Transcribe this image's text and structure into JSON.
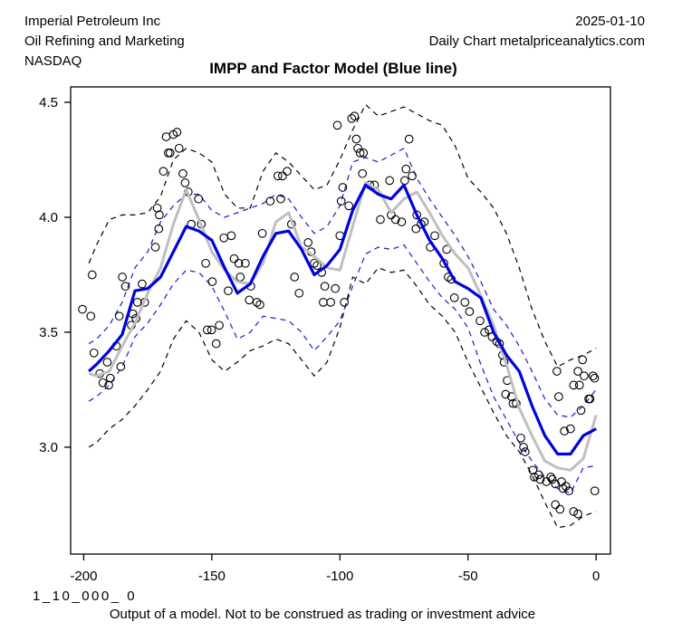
{
  "header": {
    "company": "Imperial Petroleum Inc",
    "sector": "Oil Refining and Marketing",
    "exchange": "NASDAQ",
    "date": "2025-01-10",
    "source_line": "Daily Chart metalpriceanalytics.com"
  },
  "title": "IMPP and Factor Model (Blue line)",
  "footer": {
    "model_code": "1_10_000_ 0",
    "disclaimer": "Output of a model. Not to be construed as trading or investment advice"
  },
  "chart_data": {
    "type": "line",
    "title": "IMPP and Factor Model (Blue line)",
    "xlabel": "",
    "ylabel": "",
    "grid": false,
    "legend_position": "none",
    "xlim": [
      -205.1,
      5.6
    ],
    "ylim": [
      2.535,
      4.567
    ],
    "x_ticks": [
      -200,
      -150,
      -100,
      -50,
      0
    ],
    "x_tick_labels": [
      "-200",
      "-150",
      "-100",
      "-50",
      "0"
    ],
    "y_ticks": [
      3.0,
      3.5,
      4.0,
      4.5
    ],
    "y_tick_labels": [
      "3.0",
      "3.5",
      "4.0",
      "4.5"
    ],
    "x": [
      -198,
      -195,
      -190,
      -185,
      -180,
      -175,
      -170,
      -165,
      -160,
      -155,
      -150,
      -145,
      -140,
      -135,
      -130,
      -125,
      -120,
      -115,
      -110,
      -105,
      -100,
      -95,
      -90,
      -85,
      -80,
      -75,
      -70,
      -65,
      -60,
      -55,
      -50,
      -45,
      -40,
      -35,
      -30,
      -25,
      -20,
      -15,
      -10,
      -5,
      0
    ],
    "series": [
      {
        "name": "outer-band-upper",
        "color": "#000000",
        "style": "dashed",
        "width": 1.2,
        "values": [
          3.8,
          3.88,
          3.99,
          4.01,
          4.01,
          4.02,
          4.09,
          4.25,
          4.3,
          4.28,
          4.24,
          4.1,
          4.04,
          4.04,
          4.2,
          4.28,
          4.24,
          4.18,
          4.12,
          4.14,
          4.25,
          4.38,
          4.49,
          4.44,
          4.46,
          4.48,
          4.45,
          4.42,
          4.4,
          4.31,
          4.17,
          4.11,
          4.04,
          3.93,
          3.78,
          3.6,
          3.46,
          3.35,
          3.38,
          3.4,
          3.43
        ]
      },
      {
        "name": "outer-band-lower",
        "color": "#000000",
        "style": "dashed",
        "width": 1.2,
        "values": [
          3.0,
          3.02,
          3.08,
          3.12,
          3.18,
          3.25,
          3.33,
          3.47,
          3.55,
          3.5,
          3.38,
          3.33,
          3.37,
          3.42,
          3.44,
          3.47,
          3.45,
          3.38,
          3.31,
          3.37,
          3.52,
          3.74,
          3.71,
          3.78,
          3.76,
          3.77,
          3.7,
          3.62,
          3.57,
          3.5,
          3.37,
          3.26,
          3.15,
          3.05,
          2.98,
          2.88,
          2.76,
          2.65,
          2.66,
          2.7,
          2.72
        ]
      },
      {
        "name": "inner-band-upper",
        "color": "#1a1acd",
        "style": "dashed",
        "width": 1.2,
        "values": [
          3.45,
          3.47,
          3.53,
          3.63,
          3.78,
          3.85,
          3.98,
          4.05,
          4.1,
          4.1,
          4.03,
          4.0,
          4.02,
          4.04,
          4.06,
          4.1,
          4.08,
          4.0,
          3.93,
          3.96,
          4.05,
          4.24,
          4.26,
          4.24,
          4.27,
          4.3,
          4.17,
          4.08,
          4.0,
          3.92,
          3.83,
          3.72,
          3.6,
          3.53,
          3.44,
          3.33,
          3.21,
          3.14,
          3.13,
          3.18,
          3.25
        ]
      },
      {
        "name": "inner-band-lower",
        "color": "#1a1acd",
        "style": "dashed",
        "width": 1.2,
        "values": [
          3.2,
          3.22,
          3.27,
          3.35,
          3.48,
          3.54,
          3.62,
          3.71,
          3.77,
          3.76,
          3.7,
          3.59,
          3.47,
          3.5,
          3.57,
          3.56,
          3.55,
          3.5,
          3.42,
          3.48,
          3.55,
          3.7,
          3.84,
          3.87,
          3.86,
          3.88,
          3.8,
          3.72,
          3.65,
          3.6,
          3.52,
          3.36,
          3.22,
          3.12,
          3.02,
          2.94,
          2.87,
          2.82,
          2.8,
          2.91,
          2.92
        ]
      },
      {
        "name": "smoothed-price-gray",
        "color": "#bfbfbf",
        "style": "solid",
        "width": 3,
        "values": [
          3.32,
          3.31,
          3.33,
          3.44,
          3.54,
          3.67,
          3.78,
          3.97,
          4.12,
          3.99,
          3.85,
          3.77,
          3.72,
          3.71,
          3.8,
          3.98,
          4.02,
          3.87,
          3.83,
          3.78,
          3.77,
          3.96,
          4.15,
          4.12,
          4.02,
          4.08,
          4.11,
          4.02,
          3.92,
          3.84,
          3.78,
          3.66,
          3.53,
          3.36,
          3.17,
          3.05,
          2.94,
          2.91,
          2.9,
          2.95,
          3.14
        ]
      },
      {
        "name": "factor-model-blue",
        "color": "#0000dd",
        "style": "solid",
        "width": 3.2,
        "values": [
          3.33,
          3.36,
          3.42,
          3.49,
          3.68,
          3.69,
          3.74,
          3.85,
          3.96,
          3.94,
          3.9,
          3.78,
          3.67,
          3.71,
          3.83,
          3.93,
          3.94,
          3.86,
          3.75,
          3.79,
          3.86,
          4.03,
          4.14,
          4.1,
          4.08,
          4.14,
          4.01,
          3.9,
          3.82,
          3.72,
          3.69,
          3.65,
          3.5,
          3.4,
          3.33,
          3.18,
          3.05,
          2.97,
          2.97,
          3.05,
          3.08
        ]
      }
    ],
    "scatter": {
      "name": "daily-price-points",
      "marker": "open-circle",
      "color": "#000000",
      "radius": 4.3,
      "points": [
        [
          -200.5,
          3.6
        ],
        [
          -197.2,
          3.57
        ],
        [
          -196.7,
          3.75
        ],
        [
          -196,
          3.41
        ],
        [
          -193.7,
          3.32
        ],
        [
          -192.5,
          3.28
        ],
        [
          -190.8,
          3.37
        ],
        [
          -190.2,
          3.27
        ],
        [
          -189.6,
          3.3
        ],
        [
          -187.3,
          3.44
        ],
        [
          -186.1,
          3.57
        ],
        [
          -185.5,
          3.35
        ],
        [
          -184.9,
          3.74
        ],
        [
          -183.7,
          3.7
        ],
        [
          -181.4,
          3.53
        ],
        [
          -180.8,
          3.58
        ],
        [
          -179.6,
          3.56
        ],
        [
          -179,
          3.63
        ],
        [
          -177.2,
          3.71
        ],
        [
          -176.2,
          3.63
        ],
        [
          -172,
          3.87
        ],
        [
          -171.3,
          4.04
        ],
        [
          -170.7,
          3.95
        ],
        [
          -170.5,
          4.01
        ],
        [
          -168.9,
          4.2
        ],
        [
          -167.8,
          4.35
        ],
        [
          -167,
          4.28
        ],
        [
          -166.3,
          4.28
        ],
        [
          -165,
          4.36
        ],
        [
          -163.6,
          4.37
        ],
        [
          -162.8,
          4.3
        ],
        [
          -161.3,
          4.19
        ],
        [
          -160.4,
          4.15
        ],
        [
          -159.2,
          4.11
        ],
        [
          -158,
          3.97
        ],
        [
          -155.2,
          4.08
        ],
        [
          -154.1,
          3.97
        ],
        [
          -152.4,
          3.8
        ],
        [
          -151.8,
          3.51
        ],
        [
          -150.1,
          3.51
        ],
        [
          -149.8,
          3.72
        ],
        [
          -148.3,
          3.45
        ],
        [
          -147.1,
          3.53
        ],
        [
          -145.3,
          3.91
        ],
        [
          -143.6,
          3.68
        ],
        [
          -142.4,
          3.92
        ],
        [
          -141.3,
          3.82
        ],
        [
          -139.5,
          3.8
        ],
        [
          -138.9,
          3.74
        ],
        [
          -136.9,
          3.8
        ],
        [
          -135.4,
          3.64
        ],
        [
          -134.8,
          3.7
        ],
        [
          -132.4,
          3.63
        ],
        [
          -131.2,
          3.62
        ],
        [
          -130.3,
          3.93
        ],
        [
          -127.2,
          4.07
        ],
        [
          -124.2,
          4.18
        ],
        [
          -123.1,
          4.08
        ],
        [
          -122.4,
          4.18
        ],
        [
          -120.6,
          4.2
        ],
        [
          -118.9,
          3.97
        ],
        [
          -117.7,
          3.74
        ],
        [
          -115.9,
          3.67
        ],
        [
          -112.4,
          3.89
        ],
        [
          -111.2,
          3.85
        ],
        [
          -110,
          3.8
        ],
        [
          -108.9,
          3.79
        ],
        [
          -107.1,
          3.76
        ],
        [
          -106.5,
          3.63
        ],
        [
          -105.9,
          3.7
        ],
        [
          -103.6,
          3.63
        ],
        [
          -101.8,
          3.69
        ],
        [
          -101,
          4.4
        ],
        [
          -100,
          3.92
        ],
        [
          -99.5,
          4.07
        ],
        [
          -98.9,
          4.13
        ],
        [
          -98.3,
          3.63
        ],
        [
          -96.5,
          4.05
        ],
        [
          -95.4,
          4.43
        ],
        [
          -94.3,
          4.44
        ],
        [
          -93.6,
          4.34
        ],
        [
          -93,
          4.3
        ],
        [
          -92.1,
          4.28
        ],
        [
          -91.2,
          4.19
        ],
        [
          -90.8,
          4.28
        ],
        [
          -88.3,
          4.14
        ],
        [
          -86.5,
          4.14
        ],
        [
          -84.2,
          3.99
        ],
        [
          -80.6,
          4.16
        ],
        [
          -80,
          4.01
        ],
        [
          -78.3,
          3.99
        ],
        [
          -75.9,
          3.98
        ],
        [
          -74.7,
          4.16
        ],
        [
          -74.2,
          4.21
        ],
        [
          -73,
          4.34
        ],
        [
          -71.8,
          4.18
        ],
        [
          -70.3,
          3.95
        ],
        [
          -70,
          4.01
        ],
        [
          -68.3,
          3.97
        ],
        [
          -67.1,
          3.98
        ],
        [
          -64.7,
          3.87
        ],
        [
          -63,
          3.92
        ],
        [
          -59.4,
          3.8
        ],
        [
          -58.3,
          3.86
        ],
        [
          -57.7,
          3.74
        ],
        [
          -56.5,
          3.73
        ],
        [
          -55.3,
          3.65
        ],
        [
          -51.2,
          3.63
        ],
        [
          -49.4,
          3.59
        ],
        [
          -45.3,
          3.55
        ],
        [
          -43.5,
          3.5
        ],
        [
          -41.8,
          3.51
        ],
        [
          -40.6,
          3.48
        ],
        [
          -38.8,
          3.46
        ],
        [
          -37.7,
          3.45
        ],
        [
          -36.5,
          3.4
        ],
        [
          -35.9,
          3.37
        ],
        [
          -35.3,
          3.23
        ],
        [
          -34.7,
          3.29
        ],
        [
          -33,
          3.22
        ],
        [
          -32.4,
          3.19
        ],
        [
          -31.2,
          3.19
        ],
        [
          -29.4,
          3.04
        ],
        [
          -28.3,
          3.0
        ],
        [
          -27.7,
          2.98
        ],
        [
          -24.7,
          2.9
        ],
        [
          -24.1,
          2.87
        ],
        [
          -22.4,
          2.88
        ],
        [
          -21.8,
          2.86
        ],
        [
          -19.4,
          2.85
        ],
        [
          -17.7,
          2.87
        ],
        [
          -17.1,
          2.86
        ],
        [
          -15.9,
          2.84
        ],
        [
          -15.9,
          2.75
        ],
        [
          -14.1,
          2.73
        ],
        [
          -13.5,
          2.85
        ],
        [
          -12.9,
          2.82
        ],
        [
          -11.8,
          2.83
        ],
        [
          -10.6,
          2.81
        ],
        [
          -8.8,
          2.72
        ],
        [
          -7.1,
          2.71
        ],
        [
          -0.5,
          2.81
        ],
        [
          -15.3,
          3.33
        ],
        [
          -14.6,
          3.22
        ],
        [
          -12.4,
          3.07
        ],
        [
          -10,
          3.08
        ],
        [
          -8.8,
          3.27
        ],
        [
          -7.1,
          3.33
        ],
        [
          -6.5,
          3.27
        ],
        [
          -5.9,
          3.16
        ],
        [
          -5.3,
          3.38
        ],
        [
          -4.7,
          3.31
        ],
        [
          -2.9,
          3.21
        ],
        [
          -2.4,
          3.21
        ],
        [
          -1.2,
          3.31
        ],
        [
          -0.6,
          3.3
        ]
      ]
    }
  }
}
